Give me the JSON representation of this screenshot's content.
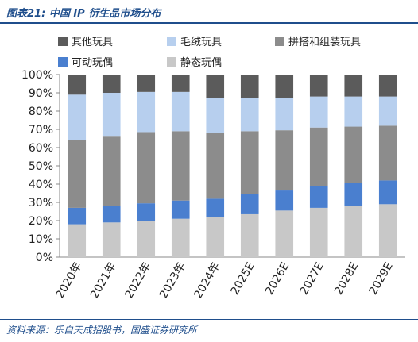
{
  "figure_title": "图表21:  中国 IP 衍生品市场分布",
  "source_note": "资料来源：乐自天成招股书，国盛证券研究所",
  "chart_data": {
    "type": "bar",
    "stacked": true,
    "categories": [
      "2020年",
      "2021年",
      "2022年",
      "2023年",
      "2024年",
      "2025E",
      "2026E",
      "2027E",
      "2028E",
      "2029E"
    ],
    "ylim": [
      0,
      100
    ],
    "yticks": [
      "0%",
      "10%",
      "20%",
      "30%",
      "40%",
      "50%",
      "60%",
      "70%",
      "80%",
      "90%",
      "100%"
    ],
    "grid": false,
    "legend_position": "top",
    "series": [
      {
        "name": "静态玩偶",
        "color": "#c8c8c8",
        "values": [
          18,
          19,
          20,
          21,
          22,
          23.5,
          25.5,
          27,
          28,
          29
        ]
      },
      {
        "name": "可动玩偶",
        "color": "#4a7fcf",
        "values": [
          9,
          9,
          9.5,
          10,
          10,
          11,
          11,
          12,
          12.5,
          13
        ]
      },
      {
        "name": "拼搭和组装玩具",
        "color": "#8c8c8c",
        "values": [
          37,
          38,
          39,
          38,
          36,
          34.5,
          33,
          32,
          31,
          30
        ]
      },
      {
        "name": "毛绒玩具",
        "color": "#b7cfee",
        "values": [
          25,
          24,
          22,
          21.5,
          19,
          18,
          17.5,
          17,
          16.5,
          16
        ]
      },
      {
        "name": "其他玩具",
        "color": "#5b5b5b",
        "values": [
          11,
          10,
          9.5,
          9.5,
          13,
          13,
          13,
          12,
          12,
          12
        ]
      }
    ]
  }
}
